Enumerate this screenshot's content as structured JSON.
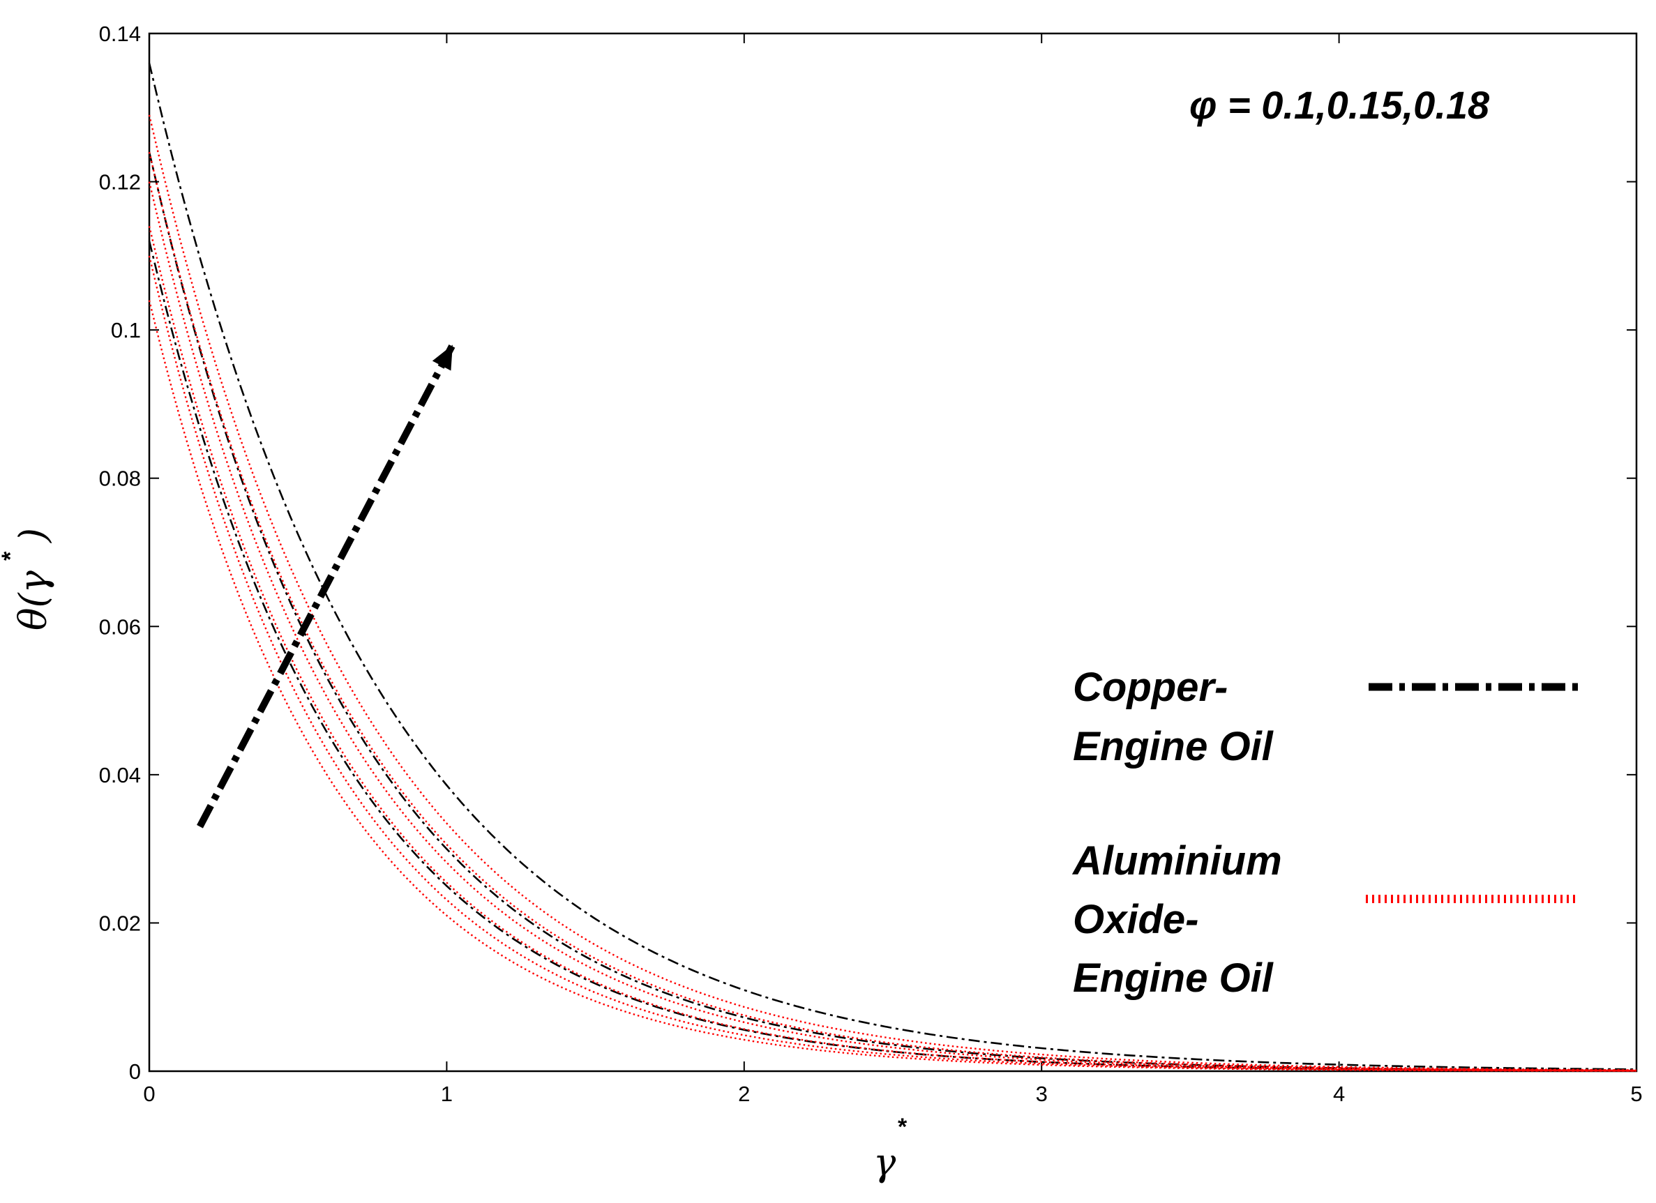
{
  "chart_data": {
    "type": "line",
    "xlabel": "γ",
    "xlabel_sup": "*",
    "ylabel_prefix": "θ(γ",
    "ylabel_sup": "*",
    "ylabel_suffix": ")",
    "xlim": [
      0,
      5
    ],
    "ylim": [
      0,
      0.14
    ],
    "x_ticks": [
      "0",
      "1",
      "2",
      "3",
      "4",
      "5"
    ],
    "y_ticks": [
      "0",
      "0.02",
      "0.04",
      "0.06",
      "0.08",
      "0.1",
      "0.12",
      "0.14"
    ],
    "annotation": "φ = 0.1,0.15,0.18",
    "legend": [
      {
        "label_lines": [
          "Copper-",
          "Engine Oil"
        ],
        "style": "dash-dot",
        "color": "#000000"
      },
      {
        "label_lines": [
          "Aluminium",
          "Oxide-",
          "Engine Oil"
        ],
        "style": "dotted",
        "color": "#ff0000"
      }
    ],
    "series": [
      {
        "group": "Copper-Engine Oil",
        "color": "#000000",
        "style": "dash-dot",
        "y0": 0.112,
        "k": 1.5
      },
      {
        "group": "Copper-Engine Oil",
        "color": "#000000",
        "style": "dash-dot",
        "y0": 0.124,
        "k": 1.42
      },
      {
        "group": "Copper-Engine Oil",
        "color": "#000000",
        "style": "dash-dot",
        "y0": 0.136,
        "k": 1.26
      },
      {
        "group": "Aluminium Oxide-Engine Oil",
        "color": "#ff0000",
        "style": "dotted",
        "y0": 0.104,
        "k": 1.6
      },
      {
        "group": "Aluminium Oxide-Engine Oil",
        "color": "#ff0000",
        "style": "dotted",
        "y0": 0.11,
        "k": 1.56
      },
      {
        "group": "Aluminium Oxide-Engine Oil",
        "color": "#ff0000",
        "style": "dotted",
        "y0": 0.114,
        "k": 1.5
      },
      {
        "group": "Aluminium Oxide-Engine Oil",
        "color": "#ff0000",
        "style": "dotted",
        "y0": 0.12,
        "k": 1.45
      },
      {
        "group": "Aluminium Oxide-Engine Oil",
        "color": "#ff0000",
        "style": "dotted",
        "y0": 0.124,
        "k": 1.4
      },
      {
        "group": "Aluminium Oxide-Engine Oil",
        "color": "#ff0000",
        "style": "dotted",
        "y0": 0.129,
        "k": 1.35
      }
    ],
    "arrow": {
      "from": [
        0.17,
        0.033
      ],
      "to": [
        1.02,
        0.098
      ]
    },
    "grid": false
  }
}
